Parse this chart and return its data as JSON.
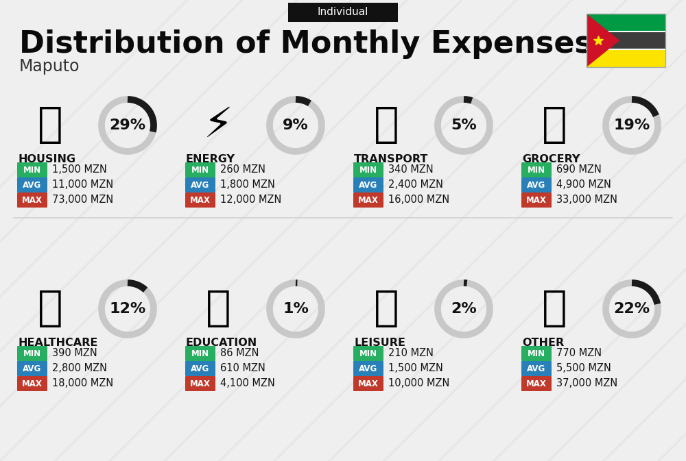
{
  "title": "Distribution of Monthly Expenses",
  "subtitle": "Individual",
  "location": "Maputo",
  "bg_color": "#efefef",
  "categories": [
    {
      "name": "HOUSING",
      "pct": 29,
      "min": "1,500 MZN",
      "avg": "11,000 MZN",
      "max": "73,000 MZN",
      "col": 0,
      "row": 0
    },
    {
      "name": "ENERGY",
      "pct": 9,
      "min": "260 MZN",
      "avg": "1,800 MZN",
      "max": "12,000 MZN",
      "col": 1,
      "row": 0
    },
    {
      "name": "TRANSPORT",
      "pct": 5,
      "min": "340 MZN",
      "avg": "2,400 MZN",
      "max": "16,000 MZN",
      "col": 2,
      "row": 0
    },
    {
      "name": "GROCERY",
      "pct": 19,
      "min": "690 MZN",
      "avg": "4,900 MZN",
      "max": "33,000 MZN",
      "col": 3,
      "row": 0
    },
    {
      "name": "HEALTHCARE",
      "pct": 12,
      "min": "390 MZN",
      "avg": "2,800 MZN",
      "max": "18,000 MZN",
      "col": 0,
      "row": 1
    },
    {
      "name": "EDUCATION",
      "pct": 1,
      "min": "86 MZN",
      "avg": "610 MZN",
      "max": "4,100 MZN",
      "col": 1,
      "row": 1
    },
    {
      "name": "LEISURE",
      "pct": 2,
      "min": "210 MZN",
      "avg": "1,500 MZN",
      "max": "10,000 MZN",
      "col": 2,
      "row": 1
    },
    {
      "name": "OTHER",
      "pct": 22,
      "min": "770 MZN",
      "avg": "5,500 MZN",
      "max": "37,000 MZN",
      "col": 3,
      "row": 1
    }
  ],
  "min_color": "#27ae60",
  "avg_color": "#2980b9",
  "max_color": "#c0392b",
  "arc_dark": "#1a1a1a",
  "arc_light": "#c8c8c8",
  "stripe_color": "#e0e0e0",
  "divider_color": "#d0d0d0"
}
